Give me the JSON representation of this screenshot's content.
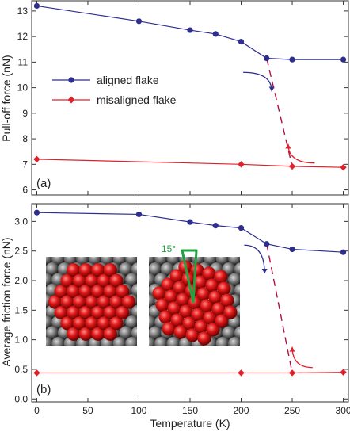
{
  "chart_data": [
    {
      "type": "line",
      "panel_label": "(a)",
      "ylabel": "Pull-off force (nN)",
      "xlim": [
        -5,
        305
      ],
      "ylim": [
        5.8,
        13.4
      ],
      "yticks": [
        6,
        7,
        8,
        9,
        10,
        11,
        12,
        13
      ],
      "series": [
        {
          "name": "aligned flake",
          "color": "#2e2e8f",
          "marker": "circle",
          "x": [
            0,
            100,
            150,
            175,
            200,
            225,
            250,
            300
          ],
          "y": [
            13.2,
            12.6,
            12.25,
            12.1,
            11.8,
            11.15,
            11.1,
            11.1
          ]
        },
        {
          "name": "misaligned flake",
          "color": "#e0202a",
          "marker": "diamond",
          "x": [
            0,
            200,
            250,
            300
          ],
          "y": [
            7.2,
            7.0,
            6.92,
            6.88
          ]
        }
      ],
      "transition": {
        "x": [
          225,
          250
        ],
        "y": [
          11.15,
          6.92
        ],
        "color": "#b01040",
        "style": "dashed"
      },
      "arrows": [
        {
          "x": [
            202,
            230
          ],
          "y": [
            10.6,
            9.85
          ],
          "color": "#2e2e8f"
        },
        {
          "x": [
            272,
            246
          ],
          "y": [
            7.05,
            7.8
          ],
          "color": "#e0202a"
        }
      ],
      "legend_placement": "left",
      "grid": false
    },
    {
      "type": "line",
      "panel_label": "(b)",
      "xlabel": "Temperature (K)",
      "ylabel": "Average friction force (nN)",
      "xlim": [
        -5,
        305
      ],
      "ylim": [
        -0.05,
        3.3
      ],
      "xticks": [
        0,
        50,
        100,
        150,
        200,
        250,
        300
      ],
      "yticks": [
        "0.0",
        "0.5",
        "1.0",
        "1.5",
        "2.0",
        "2.5",
        "3.0"
      ],
      "series": [
        {
          "name": "aligned flake",
          "color": "#2e2e8f",
          "marker": "circle",
          "x": [
            0,
            100,
            150,
            175,
            200,
            225,
            250,
            300
          ],
          "y": [
            3.15,
            3.12,
            2.99,
            2.93,
            2.89,
            2.62,
            2.53,
            2.48
          ]
        },
        {
          "name": "misaligned flake",
          "color": "#e0202a",
          "marker": "diamond",
          "x": [
            0,
            200,
            250,
            300
          ],
          "y": [
            0.44,
            0.44,
            0.44,
            0.45
          ]
        }
      ],
      "transition": {
        "x": [
          225,
          250
        ],
        "y": [
          2.62,
          0.44
        ],
        "color": "#b01040",
        "style": "dashed"
      },
      "arrows": [
        {
          "x": [
            203,
            223
          ],
          "y": [
            2.6,
            2.12
          ],
          "color": "#2e2e8f"
        },
        {
          "x": [
            270,
            250
          ],
          "y": [
            0.53,
            0.88
          ],
          "color": "#e0202a"
        }
      ],
      "inset_annotation": "15°",
      "grid": false
    }
  ]
}
